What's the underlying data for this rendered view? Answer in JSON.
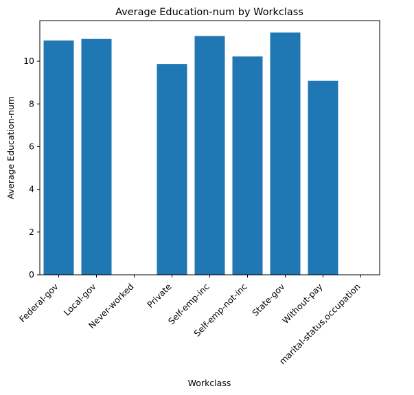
{
  "chart_data": {
    "type": "bar",
    "title": "Average Education-num by Workclass",
    "xlabel": "Workclass",
    "ylabel": "Average Education-num",
    "categories": [
      "Federal-gov",
      "Local-gov",
      "Never-worked",
      "Private",
      "Self-emp-inc",
      "Self-emp-not-inc",
      "State-gov",
      "Without-pay",
      "marital-status,occupation"
    ],
    "values": [
      10.97,
      11.04,
      null,
      9.87,
      11.18,
      10.22,
      11.34,
      9.08,
      null
    ],
    "ylim": [
      0,
      11.9
    ],
    "yticks": [
      0,
      2,
      4,
      6,
      8,
      10
    ],
    "grid": false,
    "bar_color": "#1f77b4"
  }
}
